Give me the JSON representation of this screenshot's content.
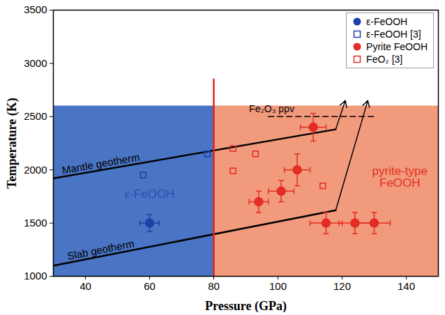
{
  "chart_data": {
    "type": "scatter",
    "xlabel": "Pressure (GPa)",
    "ylabel": "Temperature (K)",
    "xlim": [
      30,
      150
    ],
    "ylim": [
      1000,
      3500
    ],
    "xticks": [
      40,
      60,
      80,
      100,
      120,
      140
    ],
    "yticks": [
      1000,
      1500,
      2000,
      2500,
      3000,
      3500
    ],
    "legend": "top-right",
    "regions": [
      {
        "name": "ε-FeOOH",
        "color": "#4a74c4",
        "x": [
          30,
          80
        ],
        "y": [
          1000,
          2600
        ],
        "label_at": [
          60,
          1770
        ]
      },
      {
        "name": "pyrite-type FeOOH",
        "color": "#f29a7c",
        "x": [
          80,
          150
        ],
        "y": [
          1000,
          2600
        ],
        "label_at": [
          138,
          1930
        ]
      }
    ],
    "lines": [
      {
        "name": "Mantle geotherm",
        "color": "#000000",
        "x": [
          30,
          118
        ],
        "y": [
          1920,
          2380
        ],
        "label_at": [
          45,
          1998
        ],
        "arrow_to": [
          121,
          2650
        ]
      },
      {
        "name": "Slab geotherm",
        "color": "#000000",
        "x": [
          30,
          118
        ],
        "y": [
          1100,
          1620
        ],
        "label_at": [
          45,
          1189
        ],
        "arrow_to": [
          128,
          2650
        ]
      },
      {
        "name": "Fe₂O₃ ppv",
        "color": "#000000",
        "line_style": "dashed",
        "x": [
          97,
          130
        ],
        "y": [
          2500,
          2500
        ],
        "label_at": [
          91,
          2500
        ]
      },
      {
        "color": "#e8231b",
        "x": [
          80,
          80
        ],
        "y": [
          1000,
          2850
        ]
      }
    ],
    "series": [
      {
        "name": "ε-FeOOH",
        "color": "#1f3fa8",
        "marker": "circle",
        "x": [
          60
        ],
        "y": [
          1500
        ],
        "x_error": [
          3
        ],
        "y_error": [
          80
        ]
      },
      {
        "name": "ε-FeOOH [3]",
        "color": "#1f3fa8",
        "marker": "open_square",
        "x": [
          58,
          78
        ],
        "y": [
          1950,
          2150
        ]
      },
      {
        "name": "Pyrite FeOOH",
        "color": "#e32c22",
        "marker": "circle",
        "x": [
          111,
          106,
          101,
          94,
          115,
          124,
          130
        ],
        "y": [
          2400,
          2000,
          1800,
          1700,
          1500,
          1500,
          1500
        ],
        "x_error": [
          4,
          4,
          4,
          3,
          5,
          5,
          5
        ],
        "y_error": [
          130,
          150,
          100,
          100,
          100,
          100,
          100
        ]
      },
      {
        "name": "FeO₂ [3]",
        "color": "#e32c22",
        "marker": "open_square",
        "x": [
          86,
          86,
          93,
          114
        ],
        "y": [
          2200,
          1990,
          2150,
          1850
        ]
      }
    ]
  }
}
